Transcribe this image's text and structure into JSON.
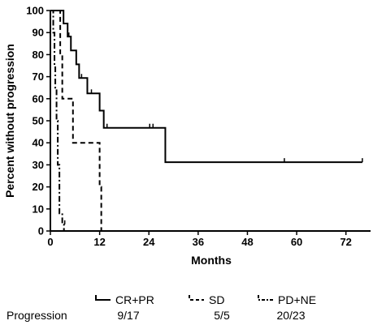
{
  "chart_data": {
    "type": "line",
    "subtype": "kaplan-meier step",
    "title": "",
    "xlabel": "Months",
    "ylabel": "Percent without progression",
    "xlim": [
      0,
      78
    ],
    "ylim": [
      0,
      100
    ],
    "x_ticks": [
      0,
      12,
      24,
      36,
      48,
      60,
      72
    ],
    "y_ticks": [
      0,
      10,
      20,
      30,
      40,
      50,
      60,
      70,
      80,
      90,
      100
    ],
    "grid": false,
    "legend_placement": "bottom",
    "series": [
      {
        "name": "CR+PR",
        "line_style": "solid",
        "steps": [
          [
            0,
            100
          ],
          [
            3.2,
            94.1
          ],
          [
            4.2,
            88.2
          ],
          [
            5,
            81.9
          ],
          [
            6.3,
            75.6
          ],
          [
            7,
            69.4
          ],
          [
            9,
            62.4
          ],
          [
            12,
            54.6
          ],
          [
            13,
            46.8
          ],
          [
            28,
            31.2
          ],
          [
            76,
            31.2
          ]
        ],
        "censor_marks": [
          [
            4.5,
            88.2
          ],
          [
            7.6,
            69.4
          ],
          [
            10,
            62.4
          ],
          [
            13.8,
            46.8
          ],
          [
            24.2,
            46.8
          ],
          [
            25,
            46.8
          ],
          [
            57,
            31.2
          ],
          [
            76,
            31.2
          ]
        ]
      },
      {
        "name": "SD",
        "line_style": "dashed",
        "steps": [
          [
            0,
            100
          ],
          [
            2.4,
            80
          ],
          [
            2.9,
            60
          ],
          [
            5.5,
            40
          ],
          [
            12,
            20
          ],
          [
            12.4,
            0
          ]
        ],
        "censor_marks": []
      },
      {
        "name": "PD+NE",
        "line_style": "dash-dot",
        "steps": [
          [
            0,
            100
          ],
          [
            0.7,
            90
          ],
          [
            1,
            75
          ],
          [
            1.2,
            65
          ],
          [
            1.5,
            50
          ],
          [
            1.8,
            30
          ],
          [
            2.2,
            8
          ],
          [
            2.9,
            3
          ],
          [
            3.3,
            0
          ]
        ],
        "censor_marks": [
          [
            3.5,
            3
          ]
        ]
      }
    ]
  },
  "legend": {
    "row_label": "Progression",
    "items": [
      {
        "name": "CR+PR",
        "line_style": "solid",
        "progression": "9/17"
      },
      {
        "name": "SD",
        "line_style": "dashed",
        "progression": "5/5"
      },
      {
        "name": "PD+NE",
        "line_style": "dash-dot",
        "progression": "20/23"
      }
    ]
  },
  "colors": {
    "line": "#000000",
    "background": "#ffffff"
  }
}
